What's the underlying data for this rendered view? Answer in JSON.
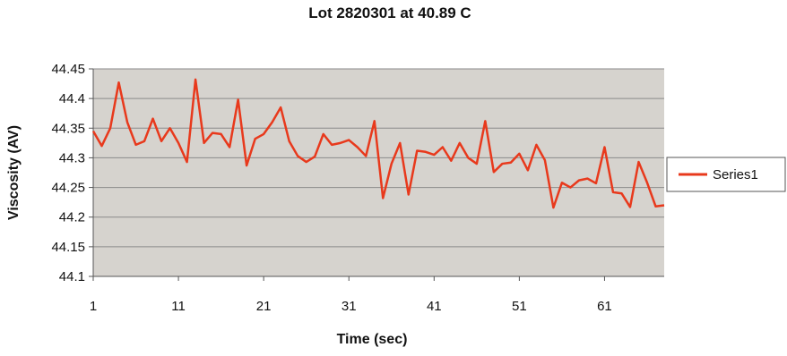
{
  "chart_data": {
    "type": "line",
    "title": "Lot 2820301 at 40.89 C",
    "xlabel": "Time (sec)",
    "ylabel": "Viscosity (AV)",
    "xlim": [
      1,
      68
    ],
    "ylim": [
      44.1,
      44.45
    ],
    "x_ticks": [
      "1",
      "11",
      "21",
      "31",
      "41",
      "51",
      "61"
    ],
    "y_ticks": [
      "44.1",
      "44.15",
      "44.2",
      "44.25",
      "44.3",
      "44.35",
      "44.4",
      "44.45"
    ],
    "grid": "horizontal",
    "legend_position": "right",
    "series": [
      {
        "name": "Series1",
        "color": "#e8391c",
        "x": [
          1,
          2,
          3,
          4,
          5,
          6,
          7,
          8,
          9,
          10,
          11,
          12,
          13,
          14,
          15,
          16,
          17,
          18,
          19,
          20,
          21,
          22,
          23,
          24,
          25,
          26,
          27,
          28,
          29,
          30,
          31,
          32,
          33,
          34,
          35,
          36,
          37,
          38,
          39,
          40,
          41,
          42,
          43,
          44,
          45,
          46,
          47,
          48,
          49,
          50,
          51,
          52,
          53,
          54,
          55,
          56,
          57,
          58,
          59,
          60,
          61,
          62,
          63,
          64,
          65,
          66,
          67,
          68
        ],
        "values": [
          44.345,
          44.32,
          44.35,
          44.427,
          44.36,
          44.322,
          44.328,
          44.366,
          44.328,
          44.35,
          44.325,
          44.293,
          44.432,
          44.325,
          44.342,
          44.34,
          44.318,
          44.398,
          44.287,
          44.332,
          44.34,
          44.36,
          44.385,
          44.328,
          44.303,
          44.293,
          44.302,
          44.34,
          44.322,
          44.325,
          44.33,
          44.318,
          44.303,
          44.362,
          44.232,
          44.29,
          44.325,
          44.238,
          44.312,
          44.31,
          44.305,
          44.318,
          44.295,
          44.325,
          44.3,
          44.29,
          44.362,
          44.276,
          44.29,
          44.292,
          44.307,
          44.279,
          44.322,
          44.296,
          44.216,
          44.258,
          44.25,
          44.262,
          44.265,
          44.257,
          44.318,
          44.242,
          44.24,
          44.217,
          44.293,
          44.258,
          44.218,
          44.22
        ]
      }
    ]
  }
}
